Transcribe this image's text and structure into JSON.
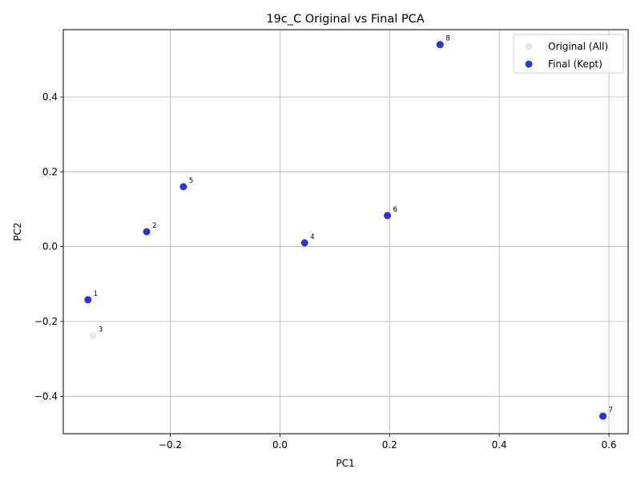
{
  "chart_data": {
    "type": "scatter",
    "title": "19c_C Original vs Final PCA",
    "xlabel": "PC1",
    "ylabel": "PC2",
    "xlim": [
      -0.395,
      0.635
    ],
    "ylim": [
      -0.5,
      0.58
    ],
    "xticks": [
      -0.2,
      0.0,
      0.2,
      0.4,
      0.6
    ],
    "yticks": [
      -0.4,
      -0.2,
      0.0,
      0.2,
      0.4
    ],
    "xtick_labels": [
      "−0.2",
      "0.0",
      "0.2",
      "0.4",
      "0.6"
    ],
    "ytick_labels": [
      "−0.4",
      "−0.2",
      "0.0",
      "0.2",
      "0.4"
    ],
    "grid": true,
    "legend_position": "top-right",
    "series": [
      {
        "name": "Original (All)",
        "color": "#e6e6e6",
        "points": [
          {
            "label": "1",
            "x": -0.35,
            "y": -0.142
          },
          {
            "label": "2",
            "x": -0.243,
            "y": 0.04
          },
          {
            "label": "3",
            "x": -0.341,
            "y": -0.238
          },
          {
            "label": "4",
            "x": 0.045,
            "y": 0.01
          },
          {
            "label": "5",
            "x": -0.176,
            "y": 0.16
          },
          {
            "label": "6",
            "x": 0.196,
            "y": 0.083
          },
          {
            "label": "7",
            "x": 0.589,
            "y": -0.453
          },
          {
            "label": "8",
            "x": 0.292,
            "y": 0.54
          }
        ]
      },
      {
        "name": "Final (Kept)",
        "color": "#0000dd",
        "points": [
          {
            "label": "1",
            "x": -0.35,
            "y": -0.142
          },
          {
            "label": "2",
            "x": -0.243,
            "y": 0.04
          },
          {
            "label": "4",
            "x": 0.045,
            "y": 0.01
          },
          {
            "label": "5",
            "x": -0.176,
            "y": 0.16
          },
          {
            "label": "6",
            "x": 0.196,
            "y": 0.083
          },
          {
            "label": "7",
            "x": 0.589,
            "y": -0.453
          },
          {
            "label": "8",
            "x": 0.292,
            "y": 0.54
          }
        ]
      }
    ]
  }
}
